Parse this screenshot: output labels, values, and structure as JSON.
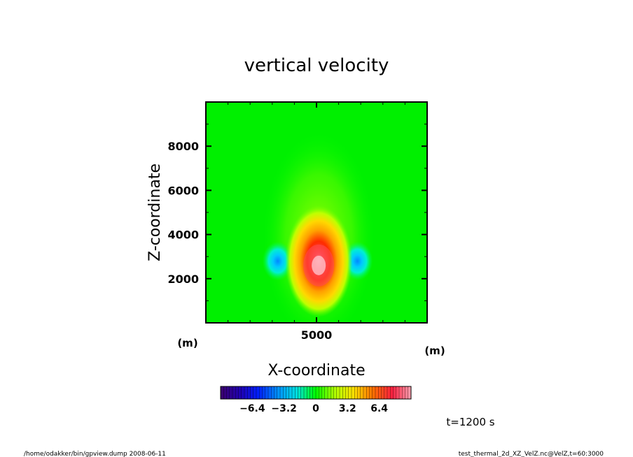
{
  "chart_data": {
    "type": "heatmap",
    "title": "vertical velocity",
    "xlabel": "X-coordinate",
    "ylabel": "Z-coordinate",
    "x_unit": "(m)",
    "y_unit": "(m)",
    "xlim": [
      0,
      10000
    ],
    "ylim": [
      0,
      10000
    ],
    "x_ticks": [
      5000
    ],
    "y_ticks": [
      2000,
      4000,
      6000,
      8000
    ],
    "colorbar": {
      "range": [
        -9.6,
        9.6
      ],
      "ticks": [
        -6.4,
        -3.2,
        0,
        3.2,
        6.4
      ],
      "tick_labels": [
        "−6.4",
        "−3.2",
        "0",
        "3.2",
        "6.4"
      ],
      "colors": [
        "#3c006e",
        "#0000d8",
        "#0094ff",
        "#00f0e0",
        "#00ff00",
        "#c8ff00",
        "#ffd800",
        "#ff5000",
        "#ff4060",
        "#ffa0b0"
      ]
    },
    "features": [
      {
        "kind": "updraft-max",
        "x": 5100,
        "z": 2600,
        "value": 9.0
      },
      {
        "kind": "downdraft-min",
        "x": 3250,
        "z": 2800,
        "value": -3.5
      },
      {
        "kind": "downdraft-min",
        "x": 6850,
        "z": 2800,
        "value": -3.5
      }
    ],
    "grid": false
  },
  "annotations": {
    "time": "t=1200 s",
    "footer_left": "/home/odakker/bin/gpview.dump  2008-06-11",
    "footer_right": "test_thermal_2d_XZ_VelZ.nc@VelZ,t=60:3000"
  }
}
